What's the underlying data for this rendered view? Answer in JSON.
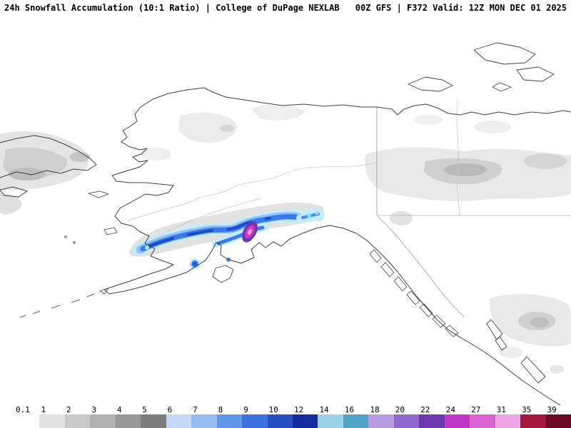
{
  "header": {
    "left": "24h Snowfall Accumulation (10:1 Ratio) | College of DuPage NEXLAB",
    "right": "00Z GFS | F372 Valid: 12Z MON DEC 01 2025"
  },
  "legend": {
    "values": [
      "0.1",
      "1",
      "2",
      "3",
      "4",
      "5",
      "6",
      "7",
      "8",
      "9",
      "10",
      "12",
      "14",
      "16",
      "18",
      "20",
      "22",
      "24",
      "27",
      "31",
      "35",
      "39"
    ],
    "colors": [
      "#ffffff",
      "#e2e2e2",
      "#c9c9c9",
      "#b0b0b0",
      "#979797",
      "#7d7d7d",
      "#c6d8f8",
      "#94bdf2",
      "#6197ea",
      "#3b72dd",
      "#2750c4",
      "#152c9e",
      "#9bd3e8",
      "#4fa3c4",
      "#b79ce0",
      "#9168cd",
      "#6b38ae",
      "#c238c8",
      "#da64d4",
      "#efa2e4",
      "#a2173a",
      "#6b0a24"
    ],
    "accent_snow_low": "#c2ecff",
    "accent_snow_mid": "#3a78ec",
    "accent_snow_high": "#d633c8"
  }
}
